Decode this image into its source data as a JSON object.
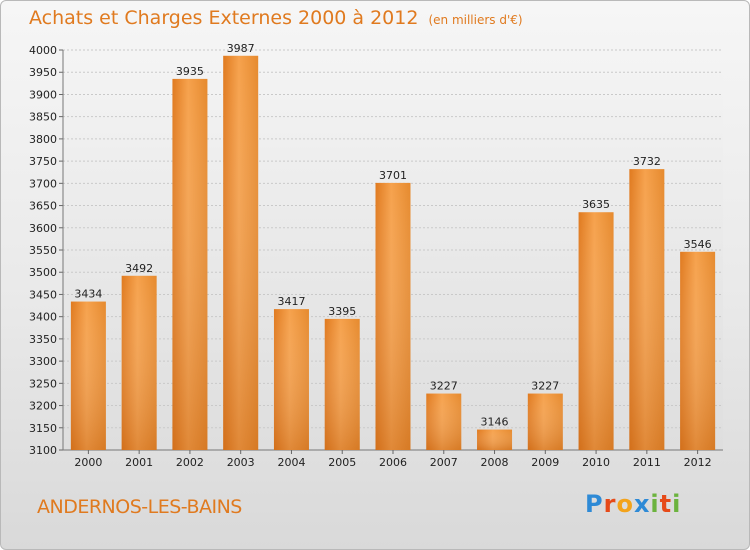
{
  "chart_data": {
    "type": "bar",
    "title": "Achats et Charges Externes 2000 à 2012",
    "unit": "(en milliers d'€)",
    "categories": [
      "2000",
      "2001",
      "2002",
      "2003",
      "2004",
      "2005",
      "2006",
      "2007",
      "2008",
      "2009",
      "2010",
      "2011",
      "2012"
    ],
    "values": [
      3434,
      3492,
      3935,
      3987,
      3417,
      3395,
      3701,
      3227,
      3146,
      3227,
      3635,
      3732,
      3546
    ],
    "ylim": [
      3100,
      4000
    ],
    "yticks": [
      3100,
      3150,
      3200,
      3250,
      3300,
      3350,
      3400,
      3450,
      3500,
      3550,
      3600,
      3650,
      3700,
      3750,
      3800,
      3850,
      3900,
      3950,
      4000
    ],
    "grid": true,
    "bar_color": "#f0943a"
  },
  "footer": {
    "city": "ANDERNOS-LES-BAINS"
  },
  "logo": {
    "letters": [
      "P",
      "r",
      "o",
      "x",
      "i",
      "t",
      "i"
    ],
    "colors": [
      "#2e8ad6",
      "#e64a19",
      "#f3a31b",
      "#2e8ad6",
      "#6cb33e",
      "#e64a19",
      "#6cb33e"
    ]
  }
}
